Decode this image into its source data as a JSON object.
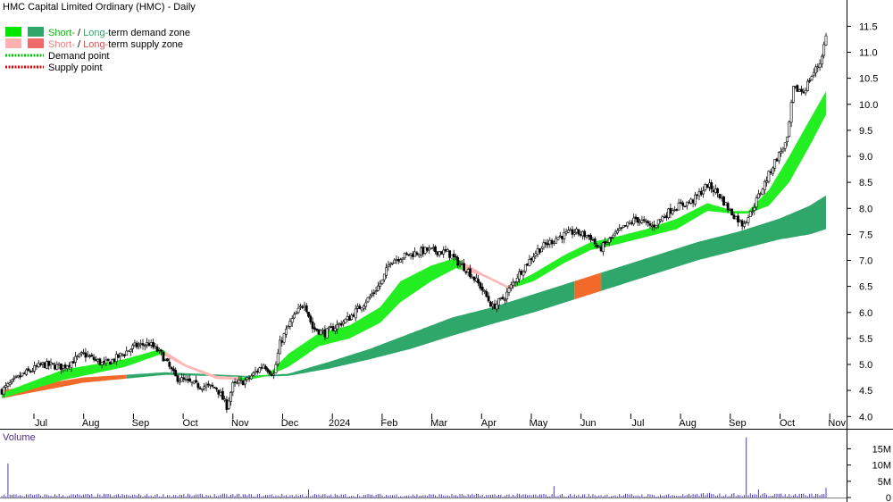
{
  "chart_data": [
    {
      "type": "candlestick",
      "title": "HMC Capital Limited Ordinary (HMC) - Daily",
      "legend": {
        "placement": "top-left",
        "items": [
          {
            "prefix": "Short-",
            "sep": " / ",
            "suffix": "Long-",
            "rest": "term demand zone",
            "colors": [
              "#00e600",
              "#2fa66a"
            ]
          },
          {
            "prefix": "Short-",
            "sep": " / ",
            "suffix": "Long-",
            "rest": "term supply zone",
            "colors": [
              "#ffb0b0",
              "#f06a6a"
            ]
          },
          {
            "label": "Demand point",
            "style": "dotted",
            "color": "#00c800"
          },
          {
            "label": "Supply point",
            "style": "dotted",
            "color": "#e00000"
          }
        ]
      },
      "x_tick_labels": [
        "Jul",
        "Aug",
        "Sep",
        "Oct",
        "Nov",
        "Dec",
        "2024",
        "Feb",
        "Mar",
        "Apr",
        "May",
        "Jun",
        "Jul",
        "Aug",
        "Sep",
        "Oct",
        "Nov"
      ],
      "y_tick_labels": [
        "4.0",
        "4.5",
        "5.0",
        "5.5",
        "6.0",
        "6.5",
        "7.0",
        "7.5",
        "8.0",
        "8.5",
        "9.0",
        "9.5",
        "10.0",
        "10.5",
        "11.0",
        "11.5"
      ],
      "ylim": [
        3.85,
        11.85
      ],
      "y_axis_side": "right",
      "grid": false,
      "period": "Daily",
      "price_key": [
        [
          0,
          4.5
        ],
        [
          10,
          4.8
        ],
        [
          20,
          5.0
        ],
        [
          30,
          4.95
        ],
        [
          40,
          5.2
        ],
        [
          50,
          5.0
        ],
        [
          55,
          5.1
        ],
        [
          65,
          5.35
        ],
        [
          72,
          5.4
        ],
        [
          78,
          5.2
        ],
        [
          85,
          4.75
        ],
        [
          95,
          4.6
        ],
        [
          105,
          4.55
        ],
        [
          110,
          4.2
        ],
        [
          113,
          4.6
        ],
        [
          120,
          4.7
        ],
        [
          128,
          5.0
        ],
        [
          133,
          4.8
        ],
        [
          136,
          5.4
        ],
        [
          141,
          5.8
        ],
        [
          148,
          6.2
        ],
        [
          152,
          5.7
        ],
        [
          158,
          5.6
        ],
        [
          170,
          5.9
        ],
        [
          180,
          6.3
        ],
        [
          186,
          6.6
        ],
        [
          190,
          7.0
        ],
        [
          198,
          7.1
        ],
        [
          208,
          7.2
        ],
        [
          218,
          7.15
        ],
        [
          222,
          7.0
        ],
        [
          228,
          6.8
        ],
        [
          234,
          6.5
        ],
        [
          240,
          6.1
        ],
        [
          246,
          6.3
        ],
        [
          252,
          6.7
        ],
        [
          262,
          7.2
        ],
        [
          272,
          7.45
        ],
        [
          280,
          7.55
        ],
        [
          288,
          7.45
        ],
        [
          292,
          7.2
        ],
        [
          300,
          7.5
        ],
        [
          310,
          7.8
        ],
        [
          318,
          7.65
        ],
        [
          328,
          8.0
        ],
        [
          338,
          8.15
        ],
        [
          345,
          8.45
        ],
        [
          350,
          8.3
        ],
        [
          356,
          7.95
        ],
        [
          362,
          7.7
        ],
        [
          366,
          7.9
        ],
        [
          372,
          8.4
        ],
        [
          378,
          8.9
        ],
        [
          384,
          9.3
        ],
        [
          387,
          10.3
        ],
        [
          392,
          10.25
        ],
        [
          396,
          10.55
        ],
        [
          400,
          10.8
        ],
        [
          403,
          11.3
        ]
      ],
      "bands": {
        "short_upper_key": [
          [
            0,
            4.45
          ],
          [
            30,
            4.9
          ],
          [
            60,
            5.1
          ],
          [
            78,
            5.3
          ],
          [
            90,
            5.0
          ],
          [
            105,
            4.78
          ],
          [
            120,
            4.75
          ],
          [
            130,
            4.8
          ],
          [
            140,
            5.2
          ],
          [
            155,
            5.6
          ],
          [
            170,
            5.75
          ],
          [
            185,
            6.1
          ],
          [
            195,
            6.6
          ],
          [
            210,
            6.9
          ],
          [
            222,
            7.05
          ],
          [
            235,
            6.75
          ],
          [
            248,
            6.5
          ],
          [
            260,
            6.75
          ],
          [
            275,
            7.1
          ],
          [
            288,
            7.35
          ],
          [
            300,
            7.45
          ],
          [
            315,
            7.6
          ],
          [
            330,
            7.8
          ],
          [
            345,
            8.1
          ],
          [
            358,
            7.95
          ],
          [
            365,
            7.95
          ],
          [
            375,
            8.35
          ],
          [
            385,
            9.0
          ],
          [
            395,
            9.7
          ],
          [
            403,
            10.25
          ]
        ],
        "short_lower_key": [
          [
            0,
            4.35
          ],
          [
            30,
            4.7
          ],
          [
            60,
            4.95
          ],
          [
            78,
            5.2
          ],
          [
            90,
            4.95
          ],
          [
            105,
            4.72
          ],
          [
            120,
            4.7
          ],
          [
            130,
            4.78
          ],
          [
            140,
            4.95
          ],
          [
            155,
            5.35
          ],
          [
            170,
            5.5
          ],
          [
            185,
            5.8
          ],
          [
            195,
            6.2
          ],
          [
            210,
            6.6
          ],
          [
            222,
            6.85
          ],
          [
            235,
            6.7
          ],
          [
            248,
            6.45
          ],
          [
            260,
            6.6
          ],
          [
            275,
            6.95
          ],
          [
            288,
            7.2
          ],
          [
            300,
            7.3
          ],
          [
            315,
            7.45
          ],
          [
            330,
            7.6
          ],
          [
            345,
            7.95
          ],
          [
            358,
            7.9
          ],
          [
            365,
            7.9
          ],
          [
            375,
            8.05
          ],
          [
            385,
            8.5
          ],
          [
            395,
            9.2
          ],
          [
            403,
            9.8
          ]
        ],
        "long_upper_key": [
          [
            0,
            4.5
          ],
          [
            40,
            4.75
          ],
          [
            80,
            4.85
          ],
          [
            120,
            4.78
          ],
          [
            140,
            4.82
          ],
          [
            160,
            5.05
          ],
          [
            180,
            5.3
          ],
          [
            200,
            5.6
          ],
          [
            220,
            5.9
          ],
          [
            240,
            6.1
          ],
          [
            260,
            6.35
          ],
          [
            280,
            6.6
          ],
          [
            300,
            6.85
          ],
          [
            320,
            7.1
          ],
          [
            340,
            7.35
          ],
          [
            360,
            7.55
          ],
          [
            380,
            7.8
          ],
          [
            395,
            8.05
          ],
          [
            403,
            8.25
          ]
        ],
        "long_lower_key": [
          [
            0,
            4.35
          ],
          [
            40,
            4.65
          ],
          [
            80,
            4.8
          ],
          [
            120,
            4.76
          ],
          [
            140,
            4.78
          ],
          [
            160,
            4.92
          ],
          [
            180,
            5.1
          ],
          [
            200,
            5.3
          ],
          [
            220,
            5.55
          ],
          [
            240,
            5.78
          ],
          [
            260,
            6.0
          ],
          [
            280,
            6.25
          ],
          [
            300,
            6.5
          ],
          [
            320,
            6.75
          ],
          [
            340,
            7.0
          ],
          [
            360,
            7.2
          ],
          [
            380,
            7.4
          ],
          [
            395,
            7.5
          ],
          [
            403,
            7.6
          ]
        ],
        "short_supply_ranges": [
          [
            80,
            115
          ],
          [
            225,
            250
          ]
        ],
        "long_supply_ranges": [
          [
            0,
            60
          ],
          [
            280,
            292
          ]
        ],
        "colors": {
          "short_demand": "#22ee22",
          "long_demand": "#2fa66a",
          "short_supply": "#ffb6b6",
          "long_supply": "#f26a2a"
        }
      }
    },
    {
      "type": "bar",
      "title": "Volume",
      "y_tick_labels": [
        "0",
        "5M",
        "10M",
        "15M"
      ],
      "ylim": [
        0,
        19500000
      ],
      "bar_color": "#4b3bcc",
      "baseline_volume": 600000,
      "spikes": [
        [
          3,
          10500000
        ],
        [
          150,
          2500000
        ],
        [
          270,
          3500000
        ],
        [
          364,
          18500000
        ],
        [
          370,
          2500000
        ],
        [
          403,
          3000000
        ]
      ]
    }
  ]
}
